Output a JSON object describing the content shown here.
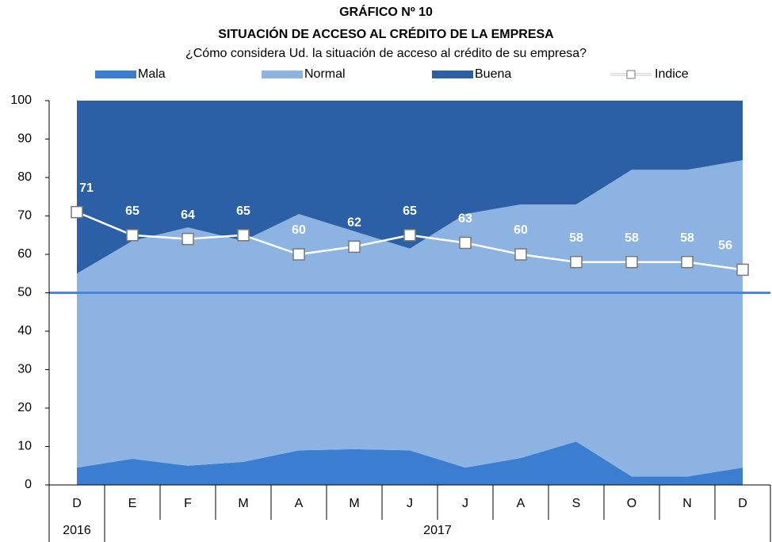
{
  "chart_data": {
    "type": "stacked_area",
    "title": "GRÁFICO Nº 10",
    "subtitle": "SITUACIÓN DE ACCESO AL CRÉDITO DE LA EMPRESA",
    "question": "¿Cómo considera Ud. la situación de acceso al crédito de su empresa?",
    "categories": [
      "D",
      "E",
      "F",
      "M",
      "A",
      "M",
      "J",
      "J",
      "A",
      "S",
      "O",
      "N",
      "D"
    ],
    "x_groups": [
      {
        "label": "2016",
        "count": 1
      },
      {
        "label": "2017",
        "count": 12
      }
    ],
    "series": [
      {
        "name": "Mala",
        "color": "#3b7dd0",
        "values": [
          4.5,
          6.8,
          5,
          6,
          9,
          9.3,
          9,
          4.5,
          7,
          11.3,
          2.2,
          2.2,
          4.5
        ]
      },
      {
        "name": "Normal",
        "color": "#8db3e2",
        "values": [
          50.5,
          56.7,
          62,
          57.5,
          61.5,
          56.7,
          52.5,
          66,
          66,
          61.7,
          79.8,
          79.8,
          80
        ]
      },
      {
        "name": "Buena",
        "color": "#2b5fa6",
        "values": [
          45,
          36.5,
          33,
          36.5,
          29.5,
          34,
          38.5,
          29.5,
          27,
          27,
          18,
          18,
          15.5
        ]
      }
    ],
    "index_series": {
      "name": "Indice",
      "color": "#ffffff",
      "values": [
        71,
        65,
        64,
        65,
        60,
        62,
        65,
        63,
        60,
        58,
        58,
        58,
        56
      ]
    },
    "reference_line": {
      "value": 50,
      "color": "#4a86d6"
    },
    "ylim": [
      0,
      100
    ],
    "yticks": [
      0,
      10,
      20,
      30,
      40,
      50,
      60,
      70,
      80,
      90,
      100
    ]
  }
}
